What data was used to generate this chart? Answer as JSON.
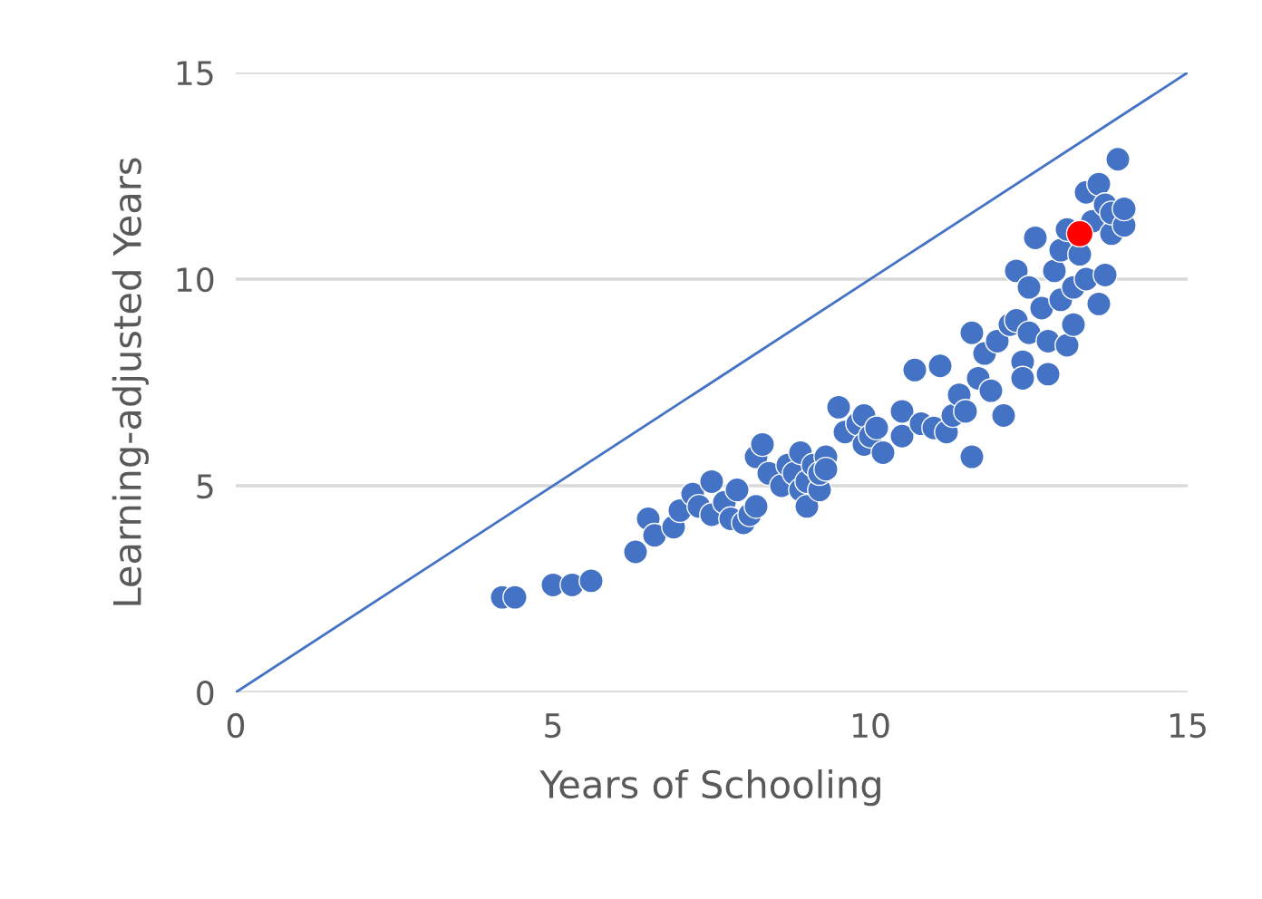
{
  "chart_data": {
    "type": "scatter",
    "xlabel": "Years of Schooling",
    "ylabel": "Learning-adjusted Years",
    "xlim": [
      0,
      15
    ],
    "ylim": [
      0,
      15
    ],
    "xticks": [
      0,
      5,
      10,
      15
    ],
    "yticks": [
      0,
      5,
      10,
      15
    ],
    "grid": "y",
    "marker": "circle",
    "series": [
      {
        "color": "#4472c4",
        "x": [
          4.2,
          4.4,
          5.0,
          5.3,
          5.6,
          6.3,
          6.5,
          6.6,
          6.9,
          7.0,
          7.2,
          7.3,
          7.5,
          7.5,
          7.7,
          7.8,
          7.9,
          8.0,
          8.1,
          8.2,
          8.2,
          8.3,
          8.4,
          8.6,
          8.7,
          8.8,
          8.9,
          8.9,
          9.0,
          9.0,
          9.1,
          9.2,
          9.2,
          9.3,
          9.3,
          9.5,
          9.6,
          9.8,
          9.9,
          9.9,
          10.0,
          10.1,
          10.2,
          10.5,
          10.5,
          10.7,
          10.8,
          11.0,
          11.1,
          11.2,
          11.3,
          11.4,
          11.5,
          11.6,
          11.6,
          11.7,
          11.8,
          11.9,
          12.0,
          12.1,
          12.2,
          12.3,
          12.3,
          12.4,
          12.4,
          12.5,
          12.5,
          12.6,
          12.7,
          12.8,
          12.8,
          12.9,
          13.0,
          13.0,
          13.1,
          13.1,
          13.2,
          13.2,
          13.3,
          13.4,
          13.4,
          13.5,
          13.6,
          13.6,
          13.7,
          13.7,
          13.8,
          13.8,
          13.9,
          14.0,
          14.0
        ],
        "values": [
          2.3,
          2.3,
          2.6,
          2.6,
          2.7,
          3.4,
          4.2,
          3.8,
          4.0,
          4.4,
          4.8,
          4.5,
          5.1,
          4.3,
          4.6,
          4.2,
          4.9,
          4.1,
          4.3,
          4.5,
          5.7,
          6.0,
          5.3,
          5.0,
          5.5,
          5.3,
          5.8,
          4.9,
          4.5,
          5.1,
          5.5,
          4.9,
          5.3,
          5.7,
          5.4,
          6.9,
          6.3,
          6.5,
          6.7,
          6.0,
          6.2,
          6.4,
          5.8,
          6.8,
          6.2,
          7.8,
          6.5,
          6.4,
          7.9,
          6.3,
          6.7,
          7.2,
          6.8,
          8.7,
          5.7,
          7.6,
          8.2,
          7.3,
          8.5,
          6.7,
          8.9,
          10.2,
          9.0,
          8.0,
          7.6,
          9.8,
          8.7,
          11.0,
          9.3,
          8.5,
          7.7,
          10.2,
          9.5,
          10.7,
          8.4,
          11.2,
          8.9,
          9.8,
          10.6,
          10.0,
          12.1,
          11.4,
          9.4,
          12.3,
          10.1,
          11.8,
          11.1,
          11.6,
          12.9,
          11.3,
          11.7
        ]
      },
      {
        "type": "line",
        "color": "#4472c4",
        "x": [
          0,
          15
        ],
        "values": [
          0,
          15
        ],
        "marker": "none"
      },
      {
        "color": "#ff0000",
        "x": [
          13.3
        ],
        "values": [
          11.1
        ]
      }
    ]
  }
}
